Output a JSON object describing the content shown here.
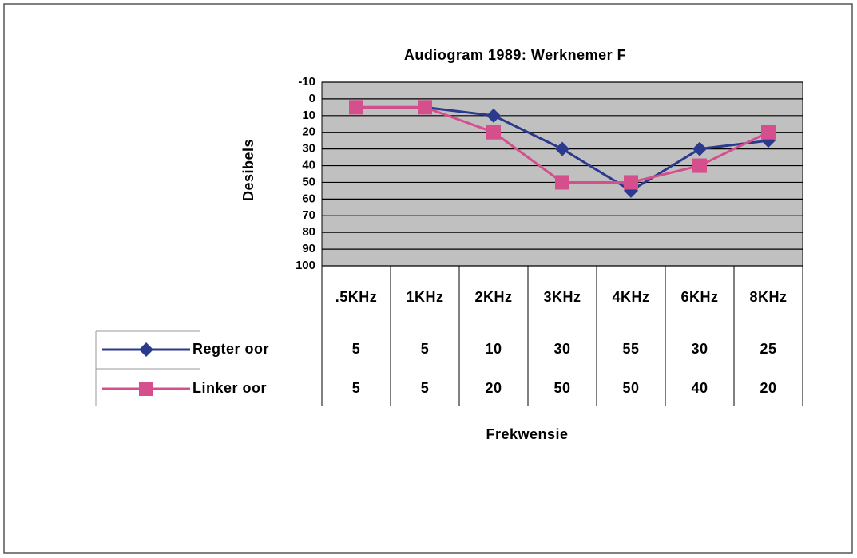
{
  "chart_data": {
    "type": "line",
    "title": "Audiogram 1989: Werknemer F",
    "y_label": "Desibels",
    "x_label": "Frekwensie",
    "categories": [
      ".5KHz",
      "1KHz",
      "2KHz",
      "3KHz",
      "4KHz",
      "6KHz",
      "8KHz"
    ],
    "series": [
      {
        "name": "Regter oor",
        "color": "#2b3a8c",
        "marker": "diamond",
        "values": [
          5,
          5,
          10,
          30,
          55,
          30,
          25
        ]
      },
      {
        "name": "Linker oor",
        "color": "#d44f8c",
        "marker": "square",
        "values": [
          5,
          5,
          20,
          50,
          50,
          40,
          20
        ]
      }
    ],
    "ylim": [
      -10,
      100
    ],
    "yticks": [
      -10,
      0,
      10,
      20,
      30,
      40,
      50,
      60,
      70,
      80,
      90,
      100
    ],
    "y_reversed": true,
    "grid": true,
    "plot_background": "#c0c0c0",
    "data_table": true
  }
}
